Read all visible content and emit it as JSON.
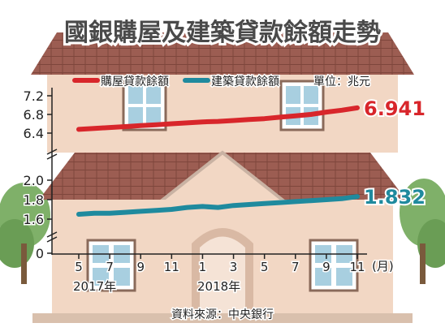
{
  "title": "國銀購屋及建築貸款餘額走勢",
  "unit_label": "單位：兆元",
  "source": "資料來源：中央銀行",
  "colors": {
    "housing": "#d8262b",
    "construction": "#1f8a9e",
    "title": "#4a4a4a"
  },
  "chart_data": [
    {
      "type": "line",
      "panel": "upper",
      "title": "",
      "x": [
        "2017-05",
        "2017-06",
        "2017-07",
        "2017-08",
        "2017-09",
        "2017-10",
        "2017-11",
        "2017-12",
        "2018-01",
        "2018-02",
        "2018-03",
        "2018-04",
        "2018-05",
        "2018-06",
        "2018-07",
        "2018-08",
        "2018-09",
        "2018-10",
        "2018-11"
      ],
      "series": [
        {
          "name": "購屋貸款餘額",
          "values": [
            6.48,
            6.5,
            6.52,
            6.54,
            6.56,
            6.58,
            6.6,
            6.62,
            6.64,
            6.65,
            6.67,
            6.69,
            6.71,
            6.74,
            6.77,
            6.8,
            6.85,
            6.89,
            6.941
          ]
        }
      ],
      "ylim": [
        6.2,
        7.3
      ],
      "yticks": [
        "6.4",
        "6.8",
        "7.2"
      ],
      "end_label": "6.941",
      "legend": "top"
    },
    {
      "type": "line",
      "panel": "lower",
      "title": "",
      "x": [
        "2017-05",
        "2017-06",
        "2017-07",
        "2017-08",
        "2017-09",
        "2017-10",
        "2017-11",
        "2017-12",
        "2018-01",
        "2018-02",
        "2018-03",
        "2018-04",
        "2018-05",
        "2018-06",
        "2018-07",
        "2018-08",
        "2018-09",
        "2018-10",
        "2018-11"
      ],
      "series": [
        {
          "name": "建築貸款餘額",
          "values": [
            1.65,
            1.66,
            1.66,
            1.67,
            1.68,
            1.69,
            1.7,
            1.72,
            1.73,
            1.72,
            1.74,
            1.75,
            1.76,
            1.77,
            1.78,
            1.79,
            1.8,
            1.81,
            1.832
          ]
        }
      ],
      "ylim": [
        0,
        2.1
      ],
      "yticks": [
        "0",
        "1.6",
        "1.8",
        "2.0"
      ],
      "end_label": "1.832",
      "xticks": [
        "5",
        "7",
        "9",
        "11",
        "1",
        "3",
        "5",
        "7",
        "9",
        "11"
      ],
      "xunit": "(月)",
      "year_labels": [
        "2017年",
        "2018年"
      ]
    }
  ]
}
